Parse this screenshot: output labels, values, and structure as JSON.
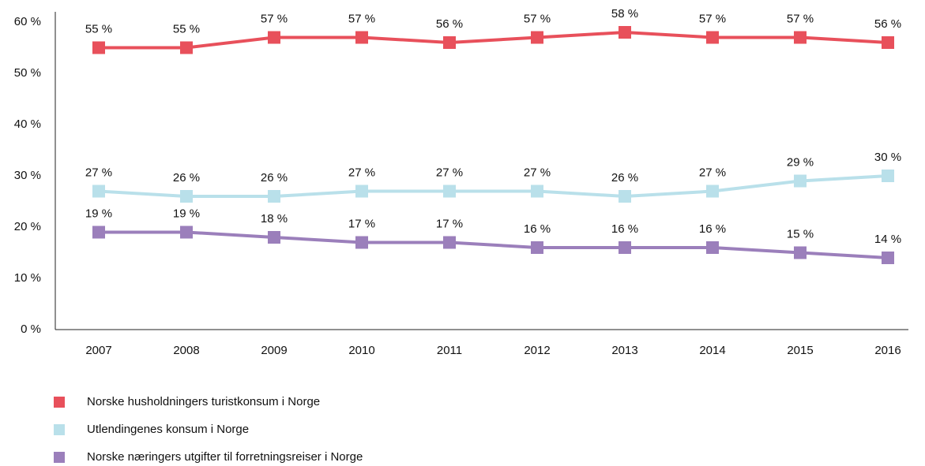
{
  "chart_data": {
    "type": "line",
    "categories": [
      "2007",
      "2008",
      "2009",
      "2010",
      "2011",
      "2012",
      "2013",
      "2014",
      "2015",
      "2016"
    ],
    "series": [
      {
        "name": "Norske husholdningers turistkonsum i Norge",
        "color": "#e8505b",
        "values": [
          55,
          55,
          57,
          57,
          56,
          57,
          58,
          57,
          57,
          56
        ],
        "value_labels": [
          "55 %",
          "55 %",
          "57 %",
          "57 %",
          "56 %",
          "57 %",
          "58 %",
          "57 %",
          "57 %",
          "56 %"
        ]
      },
      {
        "name": "Utlendingenes konsum i Norge",
        "color": "#b9e0ea",
        "values": [
          27,
          26,
          26,
          27,
          27,
          27,
          26,
          27,
          29,
          30
        ],
        "value_labels": [
          "27 %",
          "26 %",
          "26 %",
          "27 %",
          "27 %",
          "27 %",
          "26 %",
          "27 %",
          "29 %",
          "30 %"
        ]
      },
      {
        "name": "Norske næringers utgifter til forretningsreiser i Norge",
        "color": "#9b7fbb",
        "values": [
          19,
          19,
          18,
          17,
          17,
          16,
          16,
          16,
          15,
          14
        ],
        "value_labels": [
          "19 %",
          "19 %",
          "18 %",
          "17 %",
          "17 %",
          "16 %",
          "16 %",
          "16 %",
          "15 %",
          "14 %"
        ]
      }
    ],
    "ylim": [
      0,
      60
    ],
    "yticks": [
      {
        "value": 0,
        "label": "0 %"
      },
      {
        "value": 10,
        "label": "10 %"
      },
      {
        "value": 20,
        "label": "20 %"
      },
      {
        "value": 30,
        "label": "30 %"
      },
      {
        "value": 40,
        "label": "40 %"
      },
      {
        "value": 50,
        "label": "50 %"
      },
      {
        "value": 60,
        "label": "60 %"
      }
    ],
    "grid": false,
    "legend": "bottom-left"
  }
}
